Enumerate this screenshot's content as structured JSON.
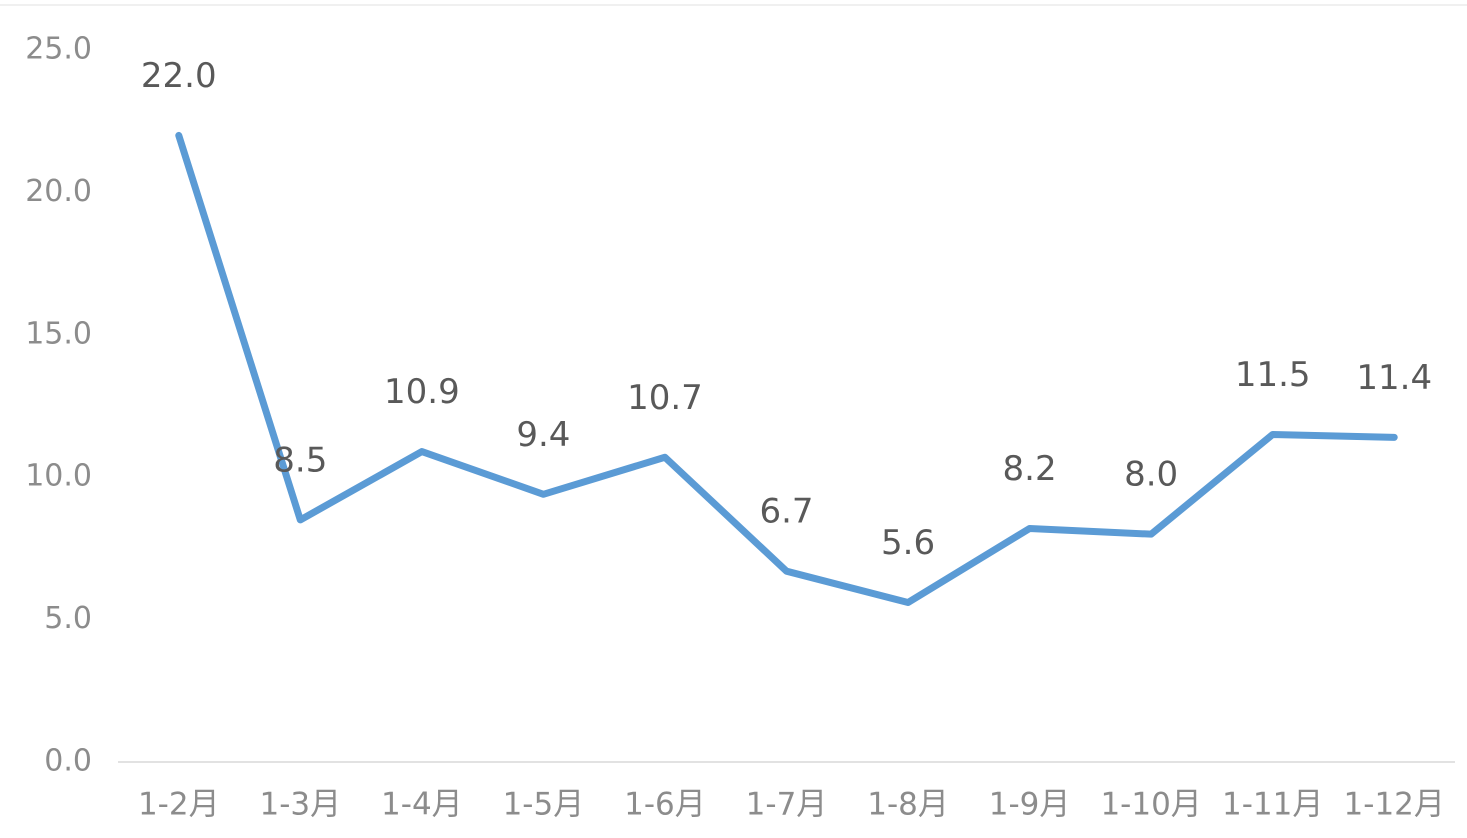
{
  "chart_data": {
    "type": "line",
    "categories": [
      "1-2月",
      "1-3月",
      "1-4月",
      "1-5月",
      "1-6月",
      "1-7月",
      "1-8月",
      "1-9月",
      "1-10月",
      "1-11月",
      "1-12月"
    ],
    "series": [
      {
        "color": "#5b9bd5",
        "values": [
          22.0,
          8.5,
          10.9,
          9.4,
          10.7,
          6.7,
          5.6,
          8.2,
          8.0,
          11.5,
          11.4
        ],
        "value_labels": [
          "22.0",
          "8.5",
          "10.9",
          "9.4",
          "10.7",
          "6.7",
          "5.6",
          "8.2",
          "8.0",
          "11.5",
          "11.4"
        ]
      }
    ],
    "ylim": [
      0,
      25
    ],
    "yticks": [
      {
        "value": 0,
        "label": "0.0"
      },
      {
        "value": 5,
        "label": "5.0"
      },
      {
        "value": 10,
        "label": "10.0"
      },
      {
        "value": 15,
        "label": "15.0"
      },
      {
        "value": 20,
        "label": "20.0"
      },
      {
        "value": 25,
        "label": "25.0"
      }
    ],
    "grid": false
  }
}
